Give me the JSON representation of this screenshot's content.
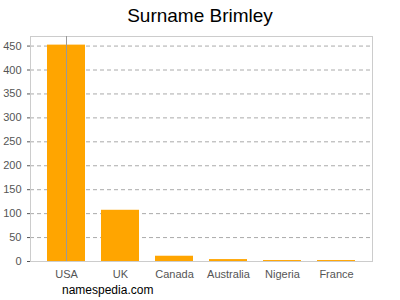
{
  "chart_data": {
    "type": "bar",
    "title": "Surname Brimley",
    "categories": [
      "USA",
      "UK",
      "Canada",
      "Australia",
      "Nigeria",
      "France"
    ],
    "values": [
      452,
      107,
      11,
      4,
      2,
      2
    ],
    "color": "#ffa500",
    "ylim": [
      0,
      470
    ],
    "yticks": [
      0,
      50,
      100,
      150,
      200,
      250,
      300,
      350,
      400,
      450
    ],
    "grid": true,
    "caption": "namespedia.com"
  }
}
